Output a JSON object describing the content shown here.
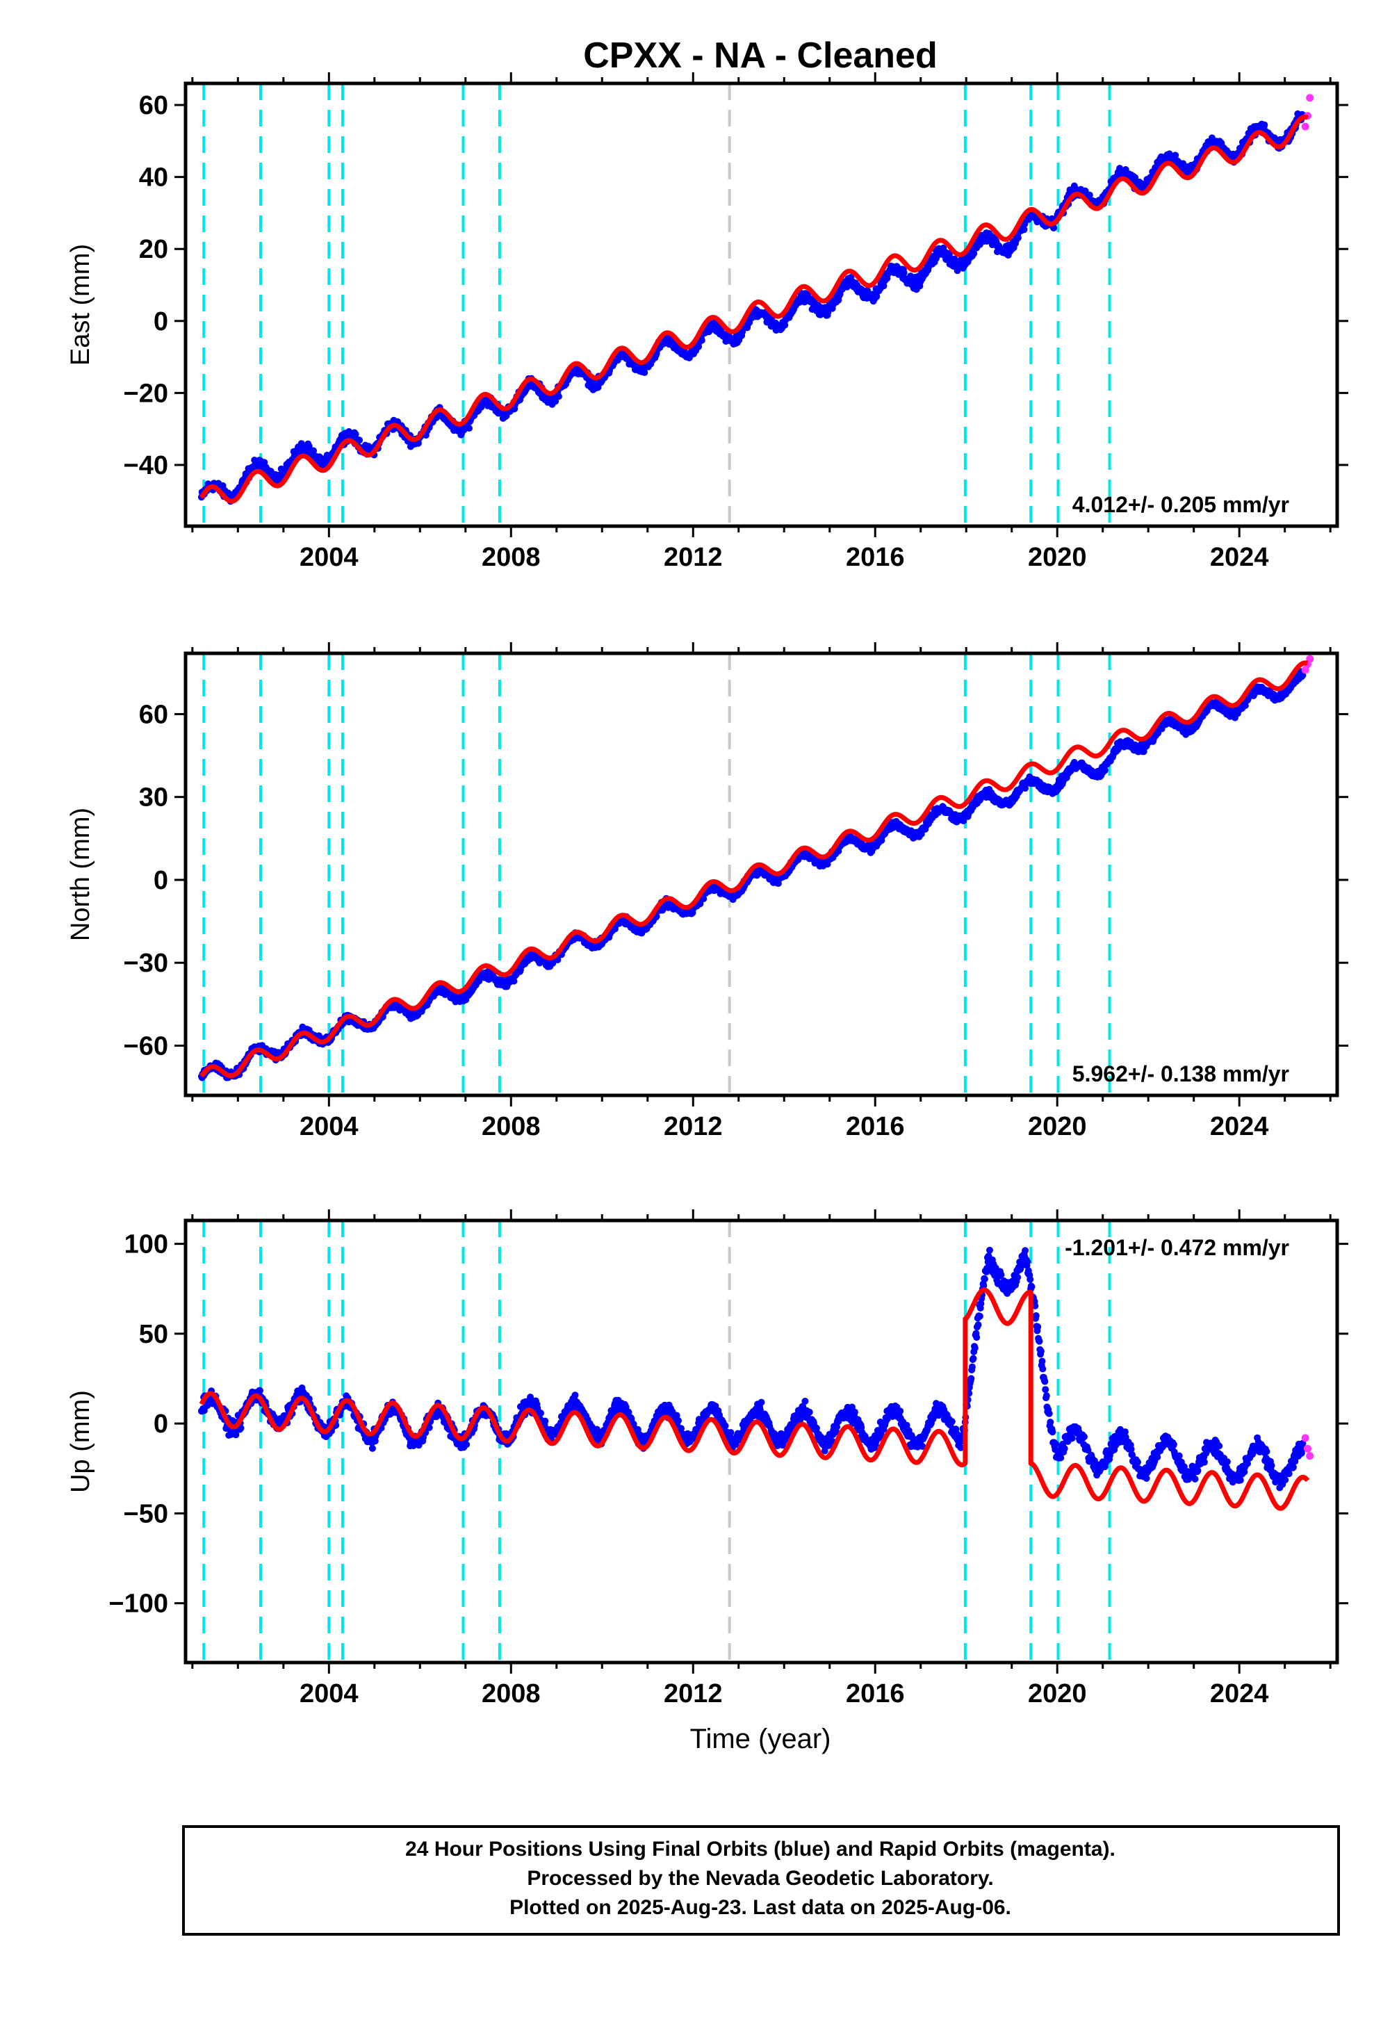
{
  "title": "CPXX  - NA - Cleaned",
  "xlabel": "Time (year)",
  "footer": [
    "24 Hour Positions Using Final Orbits (blue) and Rapid Orbits (magenta).",
    "Processed by the Nevada Geodetic Laboratory.",
    "Plotted on 2025-Aug-23. Last data on 2025-Aug-06."
  ],
  "colors": {
    "final": "#0000ff",
    "rapid": "#ff33ff",
    "model": "#ff0000",
    "offset": "#00e5ee",
    "reference": "#c8c8c8",
    "frame": "#000000"
  },
  "chart_data": [
    {
      "type": "scatter",
      "component": "east",
      "ylabel": "East (mm)",
      "rate_label": "4.012+/- 0.205 mm/yr",
      "xlim": [
        2000.85,
        2026.15
      ],
      "ylim": [
        -57,
        66
      ],
      "xticks": [
        2004,
        2008,
        2012,
        2016,
        2020,
        2024
      ],
      "xtick_labels": [
        "2004",
        "2008",
        "2012",
        "2016",
        "2020",
        "2024"
      ],
      "yticks": [
        60,
        40,
        20,
        0,
        -20,
        -40
      ],
      "ytick_labels": [
        "60",
        "40",
        "20",
        "0",
        "−20",
        "−40"
      ],
      "series": [
        {
          "role": "final",
          "x": [
            2001.2,
            2002.0,
            2003.0,
            2004.0,
            2005.0,
            2006.0,
            2007.0,
            2008.0,
            2009.0,
            2010.0,
            2011.0,
            2012.0,
            2013.0,
            2014.0,
            2015.0,
            2016.0,
            2017.0,
            2018.0,
            2019.0,
            2020.0,
            2021.0,
            2022.0,
            2023.0,
            2024.0,
            2025.4
          ],
          "y": [
            -50,
            -45,
            -40,
            -36,
            -33,
            -30,
            -27,
            -22,
            -18,
            -14,
            -10,
            -6,
            -2,
            2,
            6,
            10,
            14,
            19,
            23,
            31,
            36,
            41,
            45,
            49,
            54
          ]
        },
        {
          "role": "rapid",
          "x": [
            2025.45,
            2025.5,
            2025.55
          ],
          "y": [
            54,
            57,
            62
          ]
        }
      ],
      "model": {
        "x": [
          2001.2,
          2025.5
        ],
        "y": [
          -50,
          54
        ],
        "annual_amplitude": 3,
        "steps": []
      }
    },
    {
      "type": "scatter",
      "component": "north",
      "ylabel": "North (mm)",
      "rate_label": "5.962+/- 0.138 mm/yr",
      "xlim": [
        2000.85,
        2026.15
      ],
      "ylim": [
        -78,
        82
      ],
      "xticks": [
        2004,
        2008,
        2012,
        2016,
        2020,
        2024
      ],
      "xtick_labels": [
        "2004",
        "2008",
        "2012",
        "2016",
        "2020",
        "2024"
      ],
      "yticks": [
        60,
        30,
        0,
        -30,
        -60
      ],
      "ytick_labels": [
        "60",
        "30",
        "0",
        "−30",
        "−60"
      ],
      "series": [
        {
          "role": "final",
          "x": [
            2001.2,
            2002.0,
            2003.0,
            2004.0,
            2005.0,
            2006.0,
            2007.0,
            2008.0,
            2009.0,
            2010.0,
            2011.0,
            2012.0,
            2013.0,
            2014.0,
            2015.0,
            2016.0,
            2017.0,
            2018.0,
            2019.0,
            2020.0,
            2021.0,
            2022.0,
            2023.0,
            2024.0,
            2025.4
          ],
          "y": [
            -72,
            -67,
            -60,
            -55,
            -50,
            -45,
            -40,
            -34,
            -26,
            -20,
            -14,
            -8,
            -2,
            4,
            10,
            15,
            20,
            26,
            31,
            36,
            42,
            52,
            58,
            64,
            72
          ]
        },
        {
          "role": "rapid",
          "x": [
            2025.45,
            2025.5,
            2025.55
          ],
          "y": [
            76,
            78,
            80
          ]
        }
      ],
      "model": {
        "x": [
          2001.2,
          2025.5
        ],
        "y": [
          -72,
          76
        ],
        "annual_amplitude": 3,
        "steps": []
      }
    },
    {
      "type": "scatter",
      "component": "up",
      "ylabel": "Up (mm)",
      "rate_label": "-1.201+/- 0.472 mm/yr",
      "xlim": [
        2000.85,
        2026.15
      ],
      "ylim": [
        -133,
        113
      ],
      "xticks": [
        2004,
        2008,
        2012,
        2016,
        2020,
        2024
      ],
      "xtick_labels": [
        "2004",
        "2008",
        "2012",
        "2016",
        "2020",
        "2024"
      ],
      "yticks": [
        100,
        50,
        0,
        -50,
        -100
      ],
      "ytick_labels": [
        "100",
        "50",
        "0",
        "−50",
        "−100"
      ],
      "series": [
        {
          "role": "final",
          "x": [
            2001.2,
            2003.0,
            2005.0,
            2007.0,
            2009.0,
            2011.0,
            2013.0,
            2015.0,
            2017.0,
            2017.9,
            2018.5,
            2019.3,
            2020.0,
            2022.0,
            2024.0,
            2025.4
          ],
          "y": [
            5,
            8,
            0,
            -2,
            3,
            0,
            -1,
            -2,
            -2,
            0,
            85,
            85,
            -12,
            -18,
            -22,
            -23
          ]
        },
        {
          "role": "rapid",
          "x": [
            2025.45,
            2025.5,
            2025.55
          ],
          "y": [
            -8,
            -14,
            -18
          ]
        }
      ],
      "model": {
        "x": [
          2001.2,
          2025.5
        ],
        "y": [
          8,
          -24
        ],
        "annual_amplitude": 9,
        "steps": [
          {
            "x": 2017.98,
            "dy": 80
          },
          {
            "x": 2019.42,
            "dy": -95
          }
        ]
      }
    }
  ],
  "offsets": {
    "equipment_changes": [
      2001.25,
      2002.5,
      2004.0,
      2004.3,
      2006.95,
      2007.75,
      2017.98,
      2019.42,
      2020.02,
      2021.15
    ],
    "reference_epoch": 2012.8
  }
}
